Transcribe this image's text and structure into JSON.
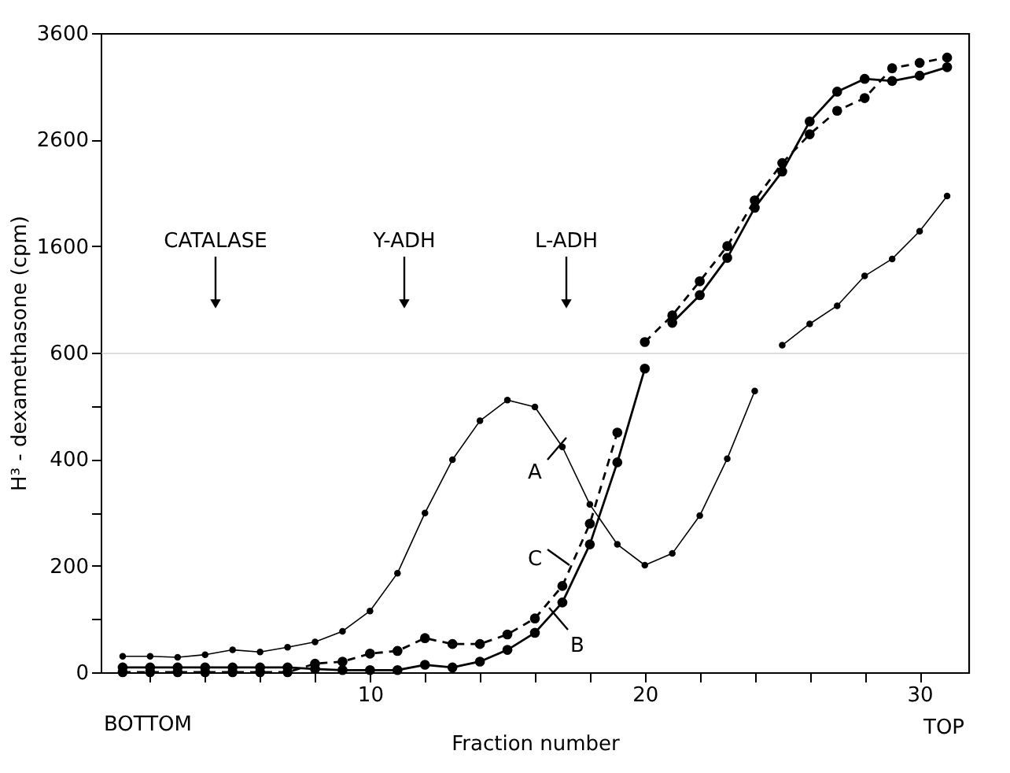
{
  "chart_data": [
    {
      "type": "line",
      "ylabel": "H³ - dexamethasone (cpm)",
      "series": [
        {
          "color": "#000000",
          "marker": "circle",
          "line_style": "solid",
          "x": [
            25,
            26,
            27,
            28,
            29,
            30,
            31
          ],
          "values": [
            670,
            870,
            1040,
            1320,
            1480,
            1740,
            2070
          ]
        },
        {
          "color": "#000000",
          "marker": "circle",
          "line_style": "solid",
          "x": [
            21,
            22,
            23,
            24,
            25,
            26,
            27,
            28,
            29,
            30,
            31
          ],
          "values": [
            880,
            1140,
            1490,
            1960,
            2300,
            2770,
            3050,
            3170,
            3150,
            3200,
            3280
          ]
        },
        {
          "color": "#000000",
          "marker": "circle",
          "line_style": "dashed",
          "x": [
            20,
            21,
            22,
            23,
            24,
            25,
            26,
            27,
            28,
            29,
            30,
            31
          ],
          "values": [
            700,
            950,
            1270,
            1600,
            2030,
            2380,
            2650,
            2870,
            2990,
            3270,
            3320,
            3370
          ]
        }
      ],
      "xlim": [
        0.2,
        31.8
      ],
      "ylim": [
        600,
        3600
      ],
      "yticks": [
        1600,
        2600,
        3600
      ],
      "tick_labels": "y",
      "grid": false,
      "annotations": [
        "CATALASE",
        "Y-ADH",
        "L-ADH"
      ]
    },
    {
      "type": "line",
      "xlabel": "Fraction number",
      "series": [
        {
          "color": "#000000",
          "marker": "circle",
          "line_style": "solid",
          "x": [
            1,
            2,
            3,
            4,
            5,
            6,
            7,
            8,
            9,
            10,
            11,
            12,
            13,
            14,
            15,
            16,
            17,
            18,
            19,
            20,
            21,
            22,
            23,
            24
          ],
          "values": [
            30,
            30,
            28,
            33,
            42,
            38,
            47,
            57,
            77,
            115,
            186,
            299,
            399,
            472,
            511,
            498,
            423,
            315,
            240,
            201,
            223,
            294,
            401,
            528
          ]
        },
        {
          "color": "#000000",
          "marker": "circle",
          "line_style": "solid",
          "x": [
            1,
            2,
            3,
            4,
            5,
            6,
            7,
            8,
            9,
            10,
            11,
            12,
            13,
            14,
            15,
            16,
            17,
            18,
            19,
            20
          ],
          "values": [
            9,
            9,
            9,
            9,
            9,
            9,
            9,
            6,
            4,
            4,
            4,
            14,
            9,
            20,
            42,
            74,
            131,
            240,
            394,
            570
          ]
        },
        {
          "color": "#000000",
          "marker": "circle",
          "line_style": "dashed",
          "x": [
            1,
            2,
            3,
            4,
            5,
            6,
            7,
            8,
            9,
            10,
            11,
            12,
            13,
            14,
            15,
            16,
            17,
            18,
            19
          ],
          "values": [
            0,
            0,
            0,
            0,
            0,
            0,
            0,
            16,
            20,
            35,
            40,
            64,
            53,
            53,
            71,
            101,
            162,
            279,
            450
          ]
        }
      ],
      "xlim": [
        0.2,
        31.8
      ],
      "xticks": [
        {
          "value": 2,
          "label": null
        },
        {
          "value": 4,
          "label": null
        },
        {
          "value": 6,
          "label": null
        },
        {
          "value": 8,
          "label": null
        },
        10,
        {
          "value": 12,
          "label": null
        },
        {
          "value": 14,
          "label": null
        },
        {
          "value": 16,
          "label": null
        },
        {
          "value": 18,
          "label": null
        },
        20,
        {
          "value": 22,
          "label": null
        },
        {
          "value": 24,
          "label": null
        },
        {
          "value": 26,
          "label": null
        },
        {
          "value": 28,
          "label": null
        },
        30
      ],
      "ylim": [
        0,
        600
      ],
      "yticks": [
        0,
        {
          "value": 100,
          "label": null
        },
        200,
        {
          "value": 300,
          "label": null
        },
        400,
        {
          "value": 500,
          "label": null
        },
        600
      ],
      "grid": false,
      "annotations": [
        "A",
        "C",
        "B",
        "BOTTOM",
        "TOP"
      ]
    }
  ]
}
